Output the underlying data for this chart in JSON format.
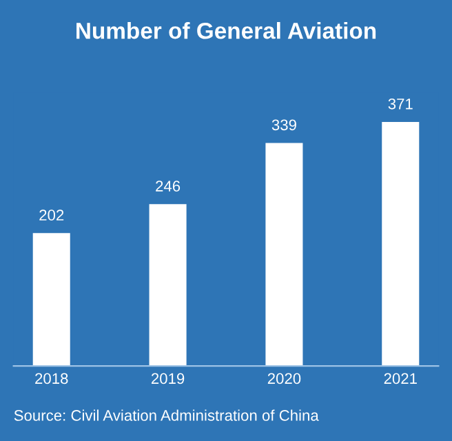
{
  "chart_data": {
    "type": "bar",
    "title": "Number of General Aviation",
    "categories": [
      "2018",
      "2019",
      "2020",
      "2021"
    ],
    "values": [
      202,
      246,
      339,
      371
    ],
    "color": "#ffffff",
    "data_labels": true,
    "grid": false,
    "legend": false,
    "annotations": [
      "Source: Civil Aviation Administration of China"
    ]
  }
}
